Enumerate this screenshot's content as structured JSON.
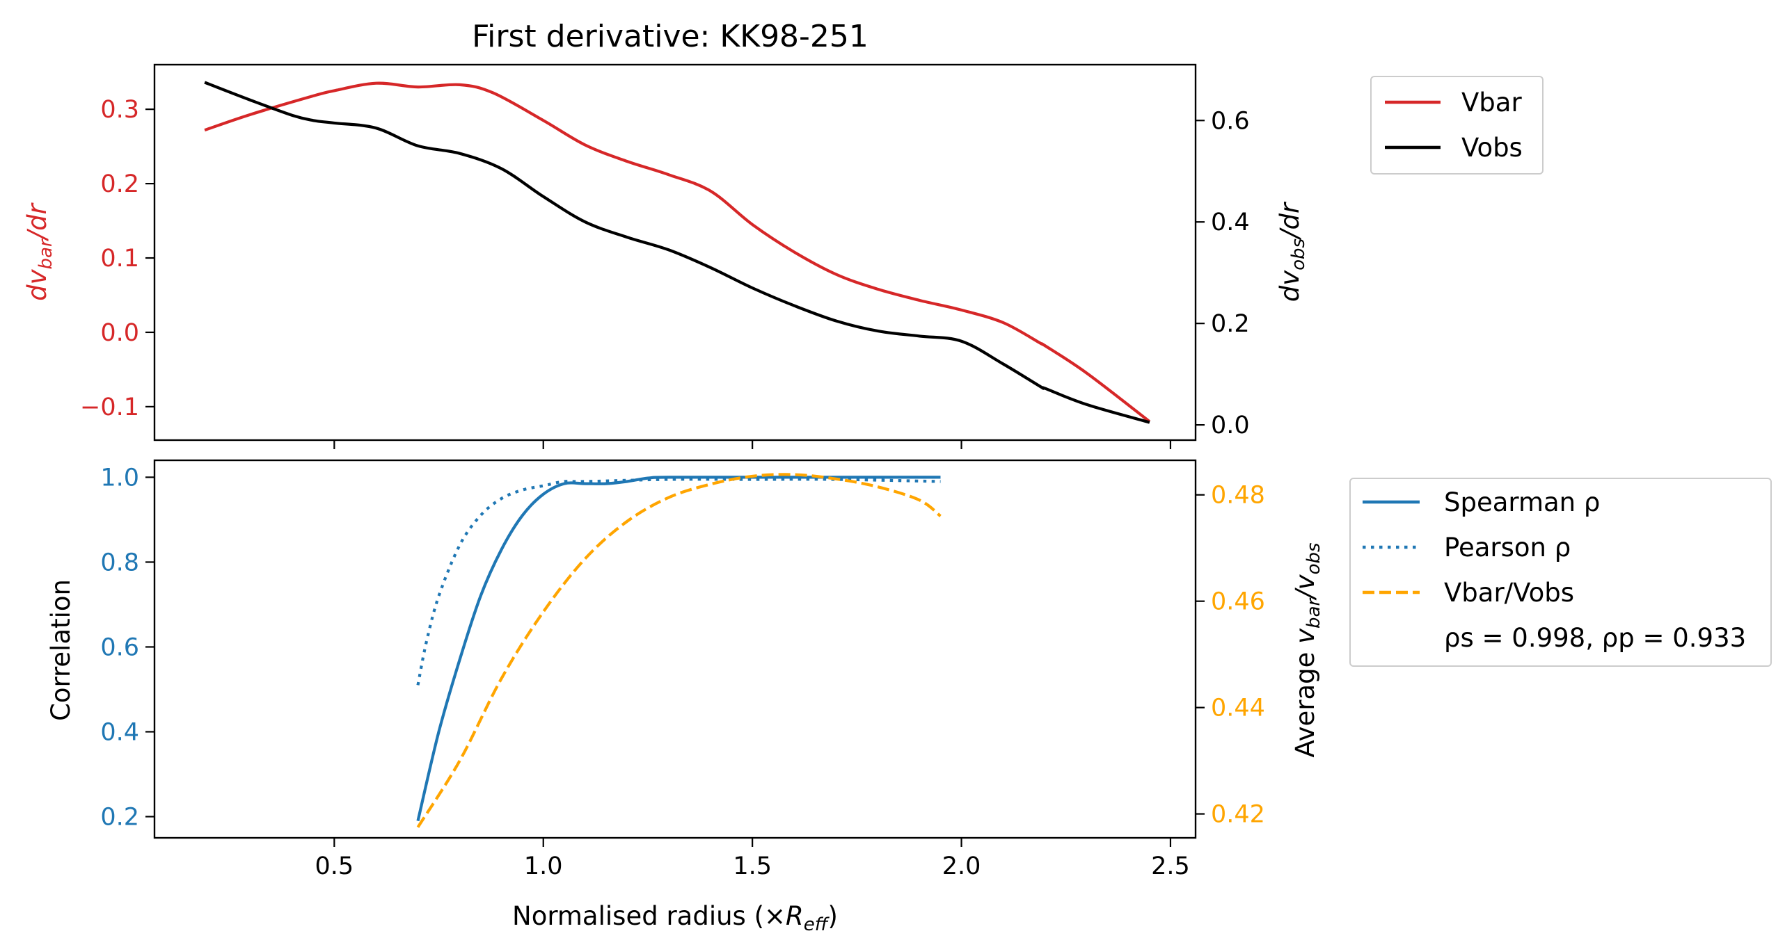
{
  "title": "First derivative: KK98-251",
  "colors": {
    "vbar": "#d62728",
    "vobs": "#000000",
    "correlation": "#1f77b4",
    "ratio": "#ffa500",
    "frame": "#000000"
  },
  "chart_data": [
    {
      "type": "line",
      "panel": "top",
      "title": "First derivative: KK98-251",
      "xlabel": "",
      "ylabel_left": "dv_bar/dr",
      "ylabel_right": "dv_obs/dr",
      "xlim": [
        0.07,
        2.56
      ],
      "ylim_left": [
        -0.145,
        0.36
      ],
      "ylim_right": [
        -0.03,
        0.71
      ],
      "xticks": [
        0.5,
        1.0,
        1.5,
        2.0,
        2.5
      ],
      "yticks_left": [
        "−0.1",
        "0.0",
        "0.1",
        "0.2",
        "0.3"
      ],
      "yticks_left_values": [
        -0.1,
        0.0,
        0.1,
        0.2,
        0.3
      ],
      "yticks_right": [
        "0.0",
        "0.2",
        "0.4",
        "0.6"
      ],
      "yticks_right_values": [
        0.0,
        0.2,
        0.4,
        0.6
      ],
      "grid": false,
      "legend": {
        "placement": "outside-top-right",
        "entries": [
          "Vbar",
          "Vobs"
        ]
      },
      "series": [
        {
          "name": "Vbar",
          "axis": "left",
          "style": "solid",
          "x": [
            0.19,
            0.3,
            0.45,
            0.5,
            0.6,
            0.7,
            0.8,
            0.88,
            1.0,
            1.1,
            1.2,
            1.3,
            1.4,
            1.5,
            1.6,
            1.7,
            1.8,
            1.9,
            2.0,
            2.1,
            2.19,
            2.2,
            2.3,
            2.45
          ],
          "values": [
            0.272,
            0.293,
            0.318,
            0.325,
            0.335,
            0.33,
            0.333,
            0.322,
            0.285,
            0.252,
            0.23,
            0.212,
            0.19,
            0.145,
            0.108,
            0.078,
            0.058,
            0.043,
            0.03,
            0.013,
            -0.015,
            -0.018,
            -0.055,
            -0.12
          ]
        },
        {
          "name": "Vobs",
          "axis": "right",
          "style": "solid",
          "x": [
            0.19,
            0.3,
            0.4,
            0.45,
            0.5,
            0.6,
            0.7,
            0.8,
            0.9,
            1.0,
            1.1,
            1.2,
            1.3,
            1.4,
            1.5,
            1.6,
            1.7,
            1.8,
            1.9,
            2.0,
            2.1,
            2.19,
            2.2,
            2.3,
            2.45
          ],
          "values": [
            0.675,
            0.64,
            0.61,
            0.6,
            0.595,
            0.585,
            0.55,
            0.535,
            0.505,
            0.45,
            0.4,
            0.37,
            0.345,
            0.31,
            0.27,
            0.235,
            0.205,
            0.185,
            0.175,
            0.165,
            0.12,
            0.075,
            0.072,
            0.04,
            0.005
          ]
        }
      ]
    },
    {
      "type": "line",
      "panel": "bottom",
      "xlabel": "Normalised radius (×R_eff)",
      "ylabel_left": "Correlation",
      "ylabel_right": "Average v_bar/v_obs",
      "xlim": [
        0.07,
        2.56
      ],
      "ylim_left": [
        0.15,
        1.04
      ],
      "ylim_right": [
        0.4155,
        0.4865
      ],
      "xticks": [
        0.5,
        1.0,
        1.5,
        2.0,
        2.5
      ],
      "xtick_labels": [
        "0.5",
        "1.0",
        "1.5",
        "2.0",
        "2.5"
      ],
      "yticks_left": [
        "0.2",
        "0.4",
        "0.6",
        "0.8",
        "1.0"
      ],
      "yticks_left_values": [
        0.2,
        0.4,
        0.6,
        0.8,
        1.0
      ],
      "yticks_right": [
        "0.42",
        "0.44",
        "0.46",
        "0.48"
      ],
      "yticks_right_values": [
        0.42,
        0.44,
        0.46,
        0.48
      ],
      "grid": false,
      "legend": {
        "placement": "outside-right",
        "entries": [
          "Spearman ρ",
          "Pearson ρ",
          "Vbar/Vobs"
        ],
        "annotation": "ρs = 0.998, ρp = 0.933"
      },
      "series": [
        {
          "name": "Spearman ρ",
          "axis": "left",
          "style": "solid",
          "x": [
            0.7,
            0.75,
            0.8,
            0.85,
            0.9,
            0.95,
            1.0,
            1.05,
            1.1,
            1.15,
            1.2,
            1.25,
            1.3,
            1.5,
            1.7,
            1.95
          ],
          "values": [
            0.19,
            0.4,
            0.57,
            0.72,
            0.83,
            0.91,
            0.96,
            0.985,
            0.985,
            0.985,
            0.99,
            0.998,
            1.0,
            1.0,
            1.0,
            1.0
          ]
        },
        {
          "name": "Pearson ρ",
          "axis": "left",
          "style": "dotted",
          "x": [
            0.7,
            0.72,
            0.75,
            0.8,
            0.85,
            0.9,
            0.95,
            1.0,
            1.05,
            1.1,
            1.3,
            1.5,
            1.7,
            1.95
          ],
          "values": [
            0.51,
            0.61,
            0.72,
            0.84,
            0.91,
            0.95,
            0.97,
            0.98,
            0.99,
            0.99,
            0.995,
            0.995,
            0.995,
            0.99
          ]
        },
        {
          "name": "Vbar/Vobs",
          "axis": "right",
          "style": "dashed",
          "x": [
            0.7,
            0.8,
            0.9,
            1.0,
            1.1,
            1.2,
            1.3,
            1.4,
            1.5,
            1.6,
            1.7,
            1.8,
            1.9,
            1.95
          ],
          "values": [
            0.4175,
            0.43,
            0.4455,
            0.458,
            0.468,
            0.475,
            0.4795,
            0.482,
            0.4835,
            0.4838,
            0.483,
            0.4815,
            0.479,
            0.476
          ]
        }
      ]
    }
  ]
}
